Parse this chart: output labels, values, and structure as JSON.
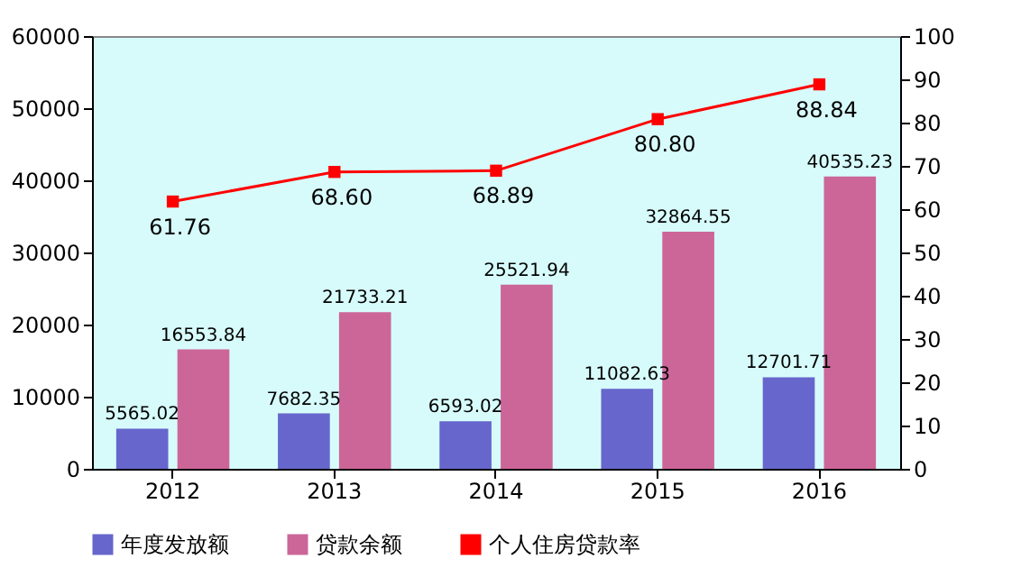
{
  "chart_data": {
    "type": "bar",
    "categories": [
      "2012",
      "2013",
      "2014",
      "2015",
      "2016"
    ],
    "series": [
      {
        "name": "年度发放额",
        "color": "#6666cc",
        "values": [
          5565.02,
          7682.35,
          6593.02,
          11082.63,
          12701.71
        ],
        "value_labels": [
          "5565.02",
          "7682.35",
          "6593.02",
          "11082.63",
          "12701.71"
        ]
      },
      {
        "name": "贷款余额",
        "color": "#cc6699",
        "values": [
          16553.84,
          21733.21,
          25521.94,
          32864.55,
          40535.23
        ],
        "value_labels": [
          "16553.84",
          "21733.21",
          "25521.94",
          "32864.55",
          "40535.23"
        ]
      },
      {
        "name": "个人住房贷款率",
        "type": "line",
        "axis": "y2",
        "color": "#ff0000",
        "marker": "square",
        "values": [
          61.76,
          68.6,
          68.89,
          80.8,
          88.84
        ],
        "value_labels": [
          "61.76",
          "68.60",
          "68.89",
          "80.80",
          "88.84"
        ]
      }
    ],
    "ylim": [
      0,
      60000
    ],
    "yticks": [
      0,
      10000,
      20000,
      30000,
      40000,
      50000,
      60000
    ],
    "y2lim": [
      0,
      100
    ],
    "y2ticks": [
      0,
      10,
      20,
      30,
      40,
      50,
      60,
      70,
      80,
      90,
      100
    ],
    "legend": "bottom",
    "grid": false
  }
}
